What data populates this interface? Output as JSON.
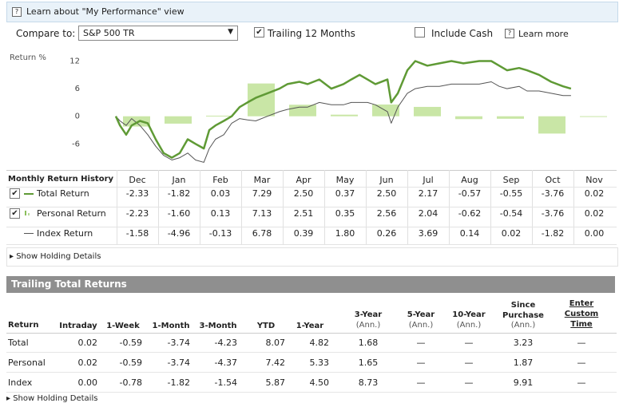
{
  "help_bar": {
    "text": "Learn about \"My Performance\" view"
  },
  "controls": {
    "compare_label": "Compare to:",
    "compare_value": "S&P 500 TR",
    "trailing_label": "Trailing 12 Months",
    "trailing_checked": true,
    "cash_label": "Include Cash",
    "cash_checked": false,
    "learn_more": "Learn more"
  },
  "chart_data": {
    "type": "line",
    "y_axis_label": "Return %",
    "xlim": [
      0,
      12
    ],
    "ylim": [
      -11.5,
      14
    ],
    "yticks": [
      12,
      6,
      0,
      -6
    ],
    "bar_color": "#c9e6a6",
    "x": [
      0,
      0.1,
      0.25,
      0.38,
      0.58,
      0.77,
      0.96,
      1.15,
      1.35,
      1.54,
      1.73,
      1.92,
      2.12,
      2.25,
      2.4,
      2.6,
      2.79,
      2.98,
      3.17,
      3.37,
      3.65,
      3.94,
      4.13,
      4.42,
      4.62,
      4.9,
      5.19,
      5.48,
      5.67,
      5.87,
      6.06,
      6.25,
      6.54,
      6.63,
      6.79,
      7.02,
      7.21,
      7.5,
      7.79,
      8.08,
      8.37,
      8.75,
      9.04,
      9.23,
      9.42,
      9.71,
      9.9,
      10.19,
      10.48,
      10.77,
      10.96
    ],
    "series": [
      {
        "color": "#5f9a35",
        "values": [
          0,
          -2,
          -4,
          -2,
          -1,
          -1.5,
          -5,
          -8,
          -9,
          -8,
          -5,
          -6,
          -7,
          -3,
          -2,
          -1,
          0,
          2,
          3,
          4,
          5,
          6,
          7,
          7.5,
          7,
          8,
          6,
          7,
          8,
          9,
          8,
          7,
          8,
          3,
          5,
          10,
          12,
          11,
          11.5,
          12,
          11.5,
          12,
          12,
          11,
          10,
          10.5,
          10,
          9,
          7.5,
          6.5,
          6
        ]
      },
      {
        "color": "#555555",
        "values": [
          0,
          -1,
          -2,
          -0.5,
          -2,
          -4,
          -6.5,
          -8.5,
          -9.5,
          -9,
          -8,
          -9.5,
          -10,
          -7,
          -5,
          -4,
          -1.5,
          -0.5,
          -0.8,
          -1,
          0,
          1,
          1.5,
          2,
          2,
          3,
          2.5,
          2.5,
          3,
          3,
          3,
          2.5,
          1,
          -1.5,
          2,
          5,
          6,
          6.5,
          6.5,
          7,
          7,
          7,
          7.5,
          6.5,
          6,
          6.5,
          5.5,
          5.5,
          5,
          4.5,
          4.5
        ]
      }
    ]
  },
  "history": {
    "title": "Monthly Return History",
    "months": [
      "Dec",
      "Jan",
      "Feb",
      "Mar",
      "Apr",
      "May",
      "Jun",
      "Jul",
      "Aug",
      "Sep",
      "Oct",
      "Nov"
    ],
    "rows": [
      {
        "label": "Total Return",
        "checked": true,
        "values": [
          "-2.33",
          "-1.82",
          "0.03",
          "7.29",
          "2.50",
          "0.37",
          "2.50",
          "2.17",
          "-0.57",
          "-0.55",
          "-3.76",
          "0.02"
        ]
      },
      {
        "label": "Personal Return",
        "checked": true,
        "values": [
          "-2.23",
          "-1.60",
          "0.13",
          "7.13",
          "2.51",
          "0.35",
          "2.56",
          "2.04",
          "-0.62",
          "-0.54",
          "-3.76",
          "0.02"
        ]
      },
      {
        "label": "Index Return",
        "checked": false,
        "values": [
          "-1.58",
          "-4.96",
          "-0.13",
          "6.78",
          "0.39",
          "1.80",
          "0.26",
          "3.69",
          "0.14",
          "0.02",
          "-1.82",
          "0.00"
        ]
      }
    ]
  },
  "show_holdings": "Show Holding Details",
  "trailing": {
    "title": "Trailing Total Returns",
    "label_header": "Return",
    "columns": [
      {
        "name": "Intraday"
      },
      {
        "name": "1-Week"
      },
      {
        "name": "1-Month"
      },
      {
        "name": "3-Month"
      },
      {
        "name": "YTD"
      },
      {
        "name": "1-Year"
      },
      {
        "name": "3-Year",
        "sub": "(Ann.)"
      },
      {
        "name": "5-Year",
        "sub": "(Ann.)"
      },
      {
        "name": "10-Year",
        "sub": "(Ann.)"
      },
      {
        "name": "Since Purchase",
        "sub": "(Ann.)"
      },
      {
        "name": "Enter Custom Time",
        "link": true
      }
    ],
    "rows": [
      {
        "label": "Total",
        "values": [
          "0.02",
          "-0.59",
          "-3.74",
          "-4.23",
          "8.07",
          "4.82",
          "1.68",
          "—",
          "—",
          "3.23",
          "—"
        ]
      },
      {
        "label": "Personal",
        "values": [
          "0.02",
          "-0.59",
          "-3.74",
          "-4.37",
          "7.42",
          "5.33",
          "1.65",
          "—",
          "—",
          "1.87",
          "—"
        ]
      },
      {
        "label": "Index",
        "values": [
          "0.00",
          "-0.78",
          "-1.82",
          "-1.54",
          "5.87",
          "4.50",
          "8.73",
          "—",
          "—",
          "9.91",
          "—"
        ]
      }
    ]
  }
}
